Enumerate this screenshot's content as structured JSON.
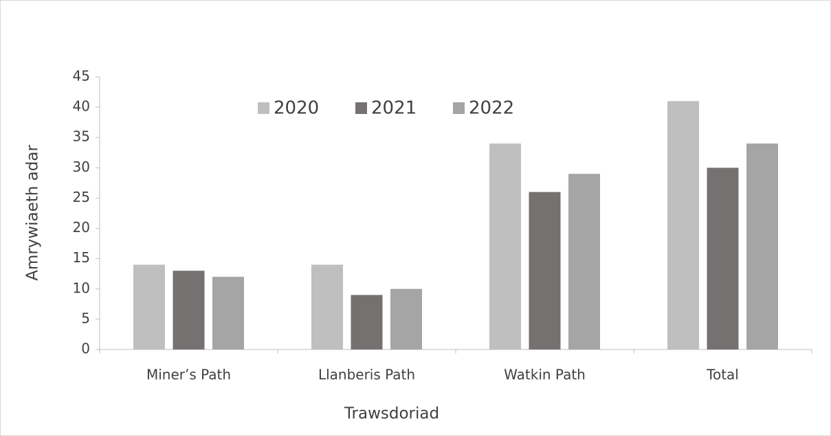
{
  "chart_data": {
    "type": "bar",
    "categories": [
      "Miner’s Path",
      "Llanberis Path",
      "Watkin Path",
      "Total"
    ],
    "series": [
      {
        "name": "2020",
        "color": "#bfbfbf",
        "values": [
          14,
          14,
          34,
          41
        ]
      },
      {
        "name": "2021",
        "color": "#767171",
        "values": [
          13,
          9,
          26,
          30
        ]
      },
      {
        "name": "2022",
        "color": "#a5a5a5",
        "values": [
          12,
          10,
          29,
          34
        ]
      }
    ],
    "x_label": "Trawsdoriad",
    "y_label": "Amrywiaeth adar",
    "ylim": [
      0,
      45
    ],
    "yticks": [
      0,
      5,
      10,
      15,
      20,
      25,
      30,
      35,
      40,
      45
    ],
    "grid": false,
    "legend": "top"
  }
}
